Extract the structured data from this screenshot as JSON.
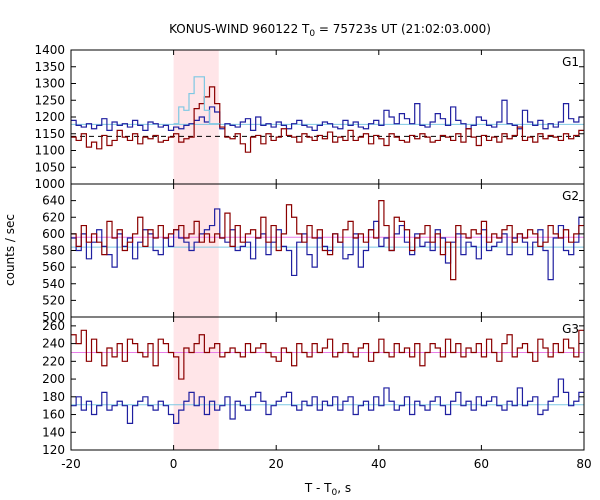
{
  "chart_data": {
    "type": "line",
    "title": "KONUS-WIND 960122 T",
    "title_sub": "0",
    "title_rest": " = 75723s UT (21:02:03.000)",
    "xlabel": "T - T",
    "xlabel_sub": "0",
    "xlabel_rest": ", s",
    "ylabel": "counts / sec",
    "xlim": [
      -20,
      80
    ],
    "x_ticks": [
      -20,
      0,
      20,
      40,
      60,
      80
    ],
    "x_tick_labels": [
      "-20",
      "0",
      "20",
      "40",
      "60",
      "80"
    ],
    "highlight_interval": [
      0,
      8.8
    ],
    "bin_width": 1,
    "colors": {
      "red": "#8b0000",
      "blue": "#1f1fa0",
      "light_blue": "#7ec8e3",
      "pink": "#e87ee8",
      "highlight": "#ffe5e8"
    },
    "panels": [
      {
        "label": "G1",
        "ylim": [
          1000,
          1400
        ],
        "y_ticks": [
          1000,
          1050,
          1100,
          1150,
          1200,
          1250,
          1300,
          1350,
          1400
        ],
        "y_tick_labels": [
          "1000",
          "1050",
          "1100",
          "1150",
          "1200",
          "1250",
          "1300",
          "1350",
          "1400"
        ],
        "background_blue": 1178,
        "background_red": 1142,
        "background_red_style": "dashed",
        "series": [
          {
            "color": "blue",
            "x_start": -20,
            "values": [
              1190,
              1175,
              1170,
              1180,
              1165,
              1175,
              1195,
              1160,
              1185,
              1175,
              1180,
              1170,
              1190,
              1175,
              1160,
              1185,
              1180,
              1170,
              1175,
              1160,
              1170,
              1165,
              1175,
              1180,
              1190,
              1200,
              1185,
              1230,
              1215,
              1165,
              1180,
              1175,
              1170,
              1185,
              1195,
              1160,
              1200,
              1175,
              1180,
              1170,
              1185,
              1175,
              1165,
              1180,
              1190,
              1175,
              1170,
              1160,
              1175,
              1185,
              1180,
              1170,
              1165,
              1190,
              1175,
              1185,
              1170,
              1165,
              1180,
              1190,
              1175,
              1220,
              1200,
              1180,
              1210,
              1195,
              1180,
              1240,
              1175,
              1170,
              1185,
              1210,
              1195,
              1175,
              1230,
              1190,
              1180,
              1165,
              1175,
              1200,
              1190,
              1175,
              1170,
              1185,
              1250,
              1180,
              1175,
              1165,
              1220,
              1185,
              1175,
              1190,
              1165,
              1180,
              1170,
              1185,
              1240,
              1195,
              1185,
              1200
            ]
          },
          {
            "color": "red",
            "x_start": -20,
            "values": [
              1140,
              1130,
              1150,
              1110,
              1125,
              1105,
              1145,
              1115,
              1130,
              1160,
              1140,
              1130,
              1150,
              1120,
              1140,
              1135,
              1145,
              1125,
              1130,
              1140,
              1150,
              1125,
              1135,
              1140,
              1225,
              1240,
              1260,
              1290,
              1240,
              1170,
              1140,
              1135,
              1150,
              1120,
              1095,
              1140,
              1145,
              1120,
              1150,
              1130,
              1140,
              1165,
              1145,
              1140,
              1125,
              1150,
              1140,
              1130,
              1145,
              1135,
              1155,
              1125,
              1140,
              1130,
              1160,
              1130,
              1140,
              1150,
              1120,
              1145,
              1135,
              1115,
              1150,
              1140,
              1130,
              1125,
              1145,
              1135,
              1150,
              1140,
              1125,
              1130,
              1145,
              1140,
              1130,
              1150,
              1125,
              1165,
              1140,
              1115,
              1145,
              1130,
              1140,
              1125,
              1150,
              1135,
              1145,
              1170,
              1130,
              1140,
              1125,
              1150,
              1135,
              1145,
              1140,
              1130,
              1150,
              1135,
              1145,
              1160
            ]
          },
          {
            "color": "light_blue",
            "x_start": 0,
            "values": [
              1180,
              1230,
              1220,
              1270,
              1320,
              1320,
              1220,
              1180,
              1180
            ]
          }
        ]
      },
      {
        "label": "G2",
        "ylim": [
          500,
          660
        ],
        "y_ticks": [
          500,
          520,
          540,
          560,
          580,
          600,
          620,
          640
        ],
        "y_tick_labels": [
          "500",
          "520",
          "540",
          "560",
          "580",
          "600",
          "620",
          "640"
        ],
        "background_blue": 584,
        "background_red": 596,
        "series": [
          {
            "color": "blue",
            "x_start": -20,
            "values": [
              595,
              580,
              600,
              570,
              590,
              605,
              585,
              575,
              560,
              600,
              585,
              595,
              570,
              590,
              605,
              600,
              580,
              575,
              595,
              585,
              605,
              595,
              590,
              580,
              590,
              600,
              605,
              610,
              630,
              595,
              590,
              605,
              580,
              585,
              590,
              570,
              595,
              600,
              575,
              590,
              605,
              585,
              580,
              550,
              590,
              600,
              575,
              560,
              595,
              585,
              580,
              600,
              590,
              570,
              575,
              600,
              560,
              580,
              605,
              615,
              585,
              595,
              580,
              600,
              610,
              590,
              575,
              600,
              585,
              590,
              580,
              605,
              595,
              565,
              590,
              600,
              575,
              590,
              585,
              570,
              605,
              580,
              585,
              590,
              600,
              575,
              595,
              600,
              590,
              575,
              590,
              605,
              580,
              545,
              595,
              610,
              580,
              575,
              590,
              620
            ]
          },
          {
            "color": "red",
            "x_start": -20,
            "values": [
              600,
              585,
              610,
              590,
              600,
              590,
              575,
              615,
              595,
              605,
              580,
              590,
              600,
              620,
              585,
              605,
              595,
              610,
              595,
              600,
              605,
              610,
              595,
              600,
              615,
              590,
              600,
              590,
              600,
              595,
              625,
              585,
              610,
              590,
              600,
              605,
              595,
              620,
              590,
              610,
              580,
              600,
              635,
              620,
              600,
              590,
              610,
              595,
              605,
              580,
              575,
              600,
              590,
              605,
              615,
              595,
              600,
              590,
              605,
              595,
              640,
              610,
              580,
              620,
              615,
              605,
              580,
              595,
              600,
              610,
              590,
              600,
              575,
              590,
              545,
              610,
              600,
              595,
              605,
              600,
              615,
              590,
              600,
              595,
              605,
              610,
              590,
              600,
              595,
              605,
              600,
              585,
              590,
              610,
              600,
              595,
              605,
              590,
              600,
              610
            ]
          }
        ]
      },
      {
        "label": "G3",
        "ylim": [
          120,
          270
        ],
        "y_ticks": [
          120,
          140,
          160,
          180,
          200,
          220,
          240,
          260
        ],
        "y_tick_labels": [
          "120",
          "140",
          "160",
          "180",
          "200",
          "220",
          "240",
          "260"
        ],
        "background_blue": 171,
        "background_red": 230,
        "series": [
          {
            "color": "blue",
            "x_start": -20,
            "values": [
              170,
              180,
              165,
              175,
              160,
              170,
              185,
              165,
              170,
              175,
              170,
              150,
              170,
              175,
              180,
              170,
              165,
              175,
              170,
              160,
              150,
              165,
              175,
              185,
              170,
              180,
              160,
              175,
              165,
              170,
              180,
              155,
              175,
              170,
              165,
              180,
              185,
              175,
              160,
              170,
              175,
              180,
              185,
              170,
              165,
              175,
              170,
              180,
              165,
              175,
              170,
              180,
              165,
              175,
              180,
              160,
              170,
              175,
              165,
              180,
              170,
              190,
              175,
              165,
              170,
              180,
              160,
              175,
              170,
              165,
              175,
              180,
              170,
              160,
              175,
              185,
              170,
              175,
              165,
              180,
              170,
              175,
              180,
              170,
              165,
              175,
              170,
              190,
              170,
              175,
              180,
              160,
              165,
              175,
              180,
              200,
              185,
              170,
              175,
              185
            ]
          },
          {
            "color": "red",
            "x_start": -20,
            "values": [
              250,
              240,
              255,
              220,
              245,
              230,
              215,
              235,
              225,
              240,
              220,
              245,
              240,
              230,
              225,
              240,
              215,
              245,
              240,
              230,
              225,
              200,
              235,
              230,
              240,
              250,
              230,
              235,
              240,
              225,
              230,
              235,
              230,
              225,
              240,
              230,
              235,
              240,
              230,
              225,
              220,
              235,
              230,
              215,
              240,
              230,
              225,
              240,
              230,
              235,
              245,
              225,
              230,
              240,
              230,
              225,
              235,
              240,
              220,
              230,
              245,
              230,
              225,
              240,
              230,
              235,
              225,
              240,
              215,
              230,
              240,
              235,
              225,
              245,
              230,
              240,
              225,
              235,
              230,
              240,
              225,
              245,
              230,
              220,
              240,
              250,
              225,
              235,
              240,
              230,
              220,
              245,
              235,
              225,
              240,
              230,
              245,
              235,
              225,
              255
            ]
          }
        ]
      }
    ]
  }
}
